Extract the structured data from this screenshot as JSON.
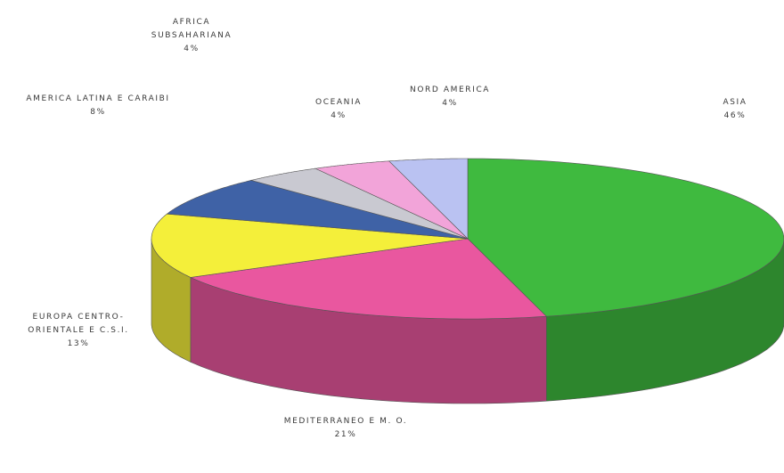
{
  "chart_data": {
    "type": "pie",
    "categories": [
      "ASIA",
      "MEDITERRANEO E M. O.",
      "EUROPA CENTRO-ORIENTALE E C.S.I.",
      "AMERICA LATINA E CARAIBI",
      "AFRICA SUBSAHARIANA",
      "OCEANIA",
      "NORD AMERICA"
    ],
    "values": [
      46,
      21,
      13,
      8,
      4,
      4,
      4
    ],
    "value_labels": [
      "46%",
      "21%",
      "13%",
      "8%",
      "4%",
      "4%",
      "4%"
    ],
    "colors": [
      "#3fba3f",
      "#e9579f",
      "#f4ef3a",
      "#3f62a6",
      "#c9c9d1",
      "#f2a4d9",
      "#bac2f2"
    ]
  }
}
